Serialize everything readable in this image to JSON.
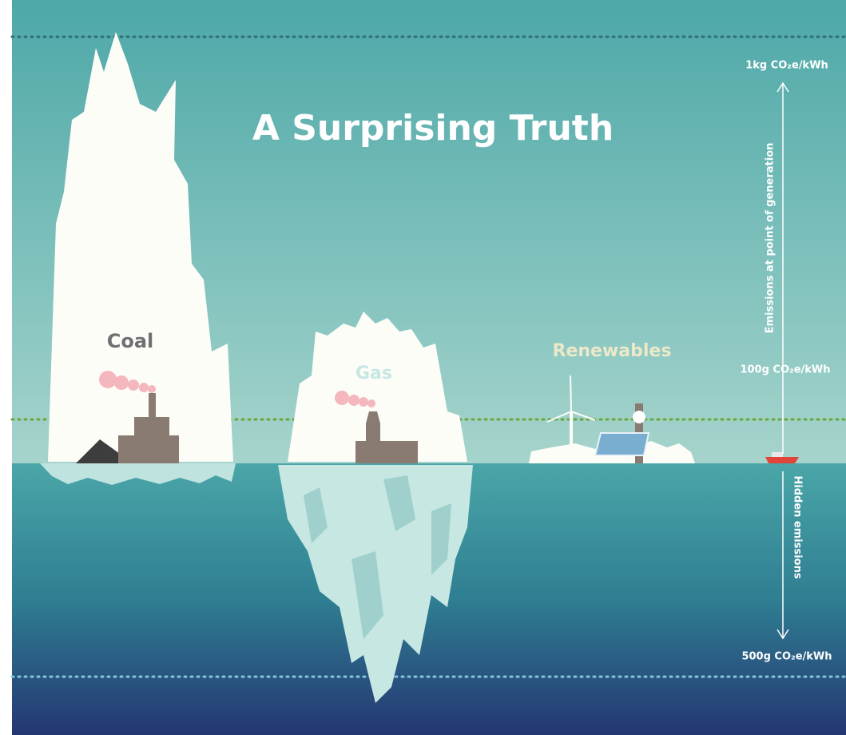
{
  "title": "A Surprising Truth",
  "icebergs": [
    {
      "label": "Coal"
    },
    {
      "label": "Gas"
    },
    {
      "label": "Renewables"
    }
  ],
  "scale": {
    "top_label": "1kg CO₂e/kWh",
    "middle_label": "100g CO₂e/kWh",
    "bottom_label": "500g CO₂e/kWh",
    "upper_axis_label": "Emissions at point of generation",
    "lower_axis_label": "Hidden emissions"
  }
}
